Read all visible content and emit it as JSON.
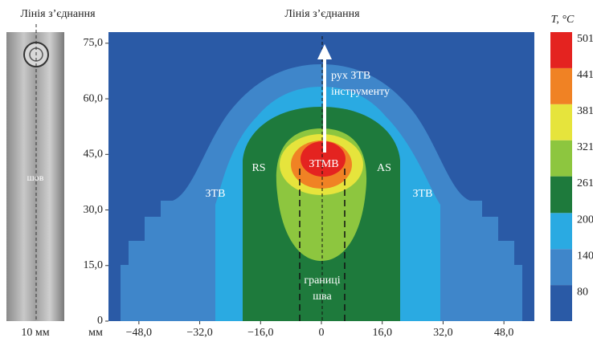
{
  "photo": {
    "title": "Лінія з’єднання",
    "label": "шов",
    "scale_label": "10 мм"
  },
  "chart_data": {
    "type": "contour",
    "title": "Лінія з’єднання",
    "x_unit": "мм",
    "xlim": [
      -56,
      56
    ],
    "xticks": [
      {
        "value": -48,
        "label": "−48,0"
      },
      {
        "value": -32,
        "label": "−32,0"
      },
      {
        "value": -16,
        "label": "−16,0"
      },
      0,
      {
        "value": 16,
        "label": "16,0"
      },
      {
        "value": 32,
        "label": "32,0"
      },
      {
        "value": 48,
        "label": "48,0"
      }
    ],
    "ylim": [
      0,
      78
    ],
    "yticks": [
      0,
      {
        "value": 15,
        "label": "15,0"
      },
      {
        "value": 30,
        "label": "30,0"
      },
      {
        "value": 45,
        "label": "45,0"
      },
      {
        "value": 60,
        "label": "60,0"
      },
      {
        "value": 75,
        "label": "75,0"
      }
    ],
    "colorbar_title": "T, °C",
    "clim": [
      20,
      501
    ],
    "levels": [
      80,
      140,
      200,
      261,
      321,
      381,
      441,
      501
    ],
    "colors": [
      "#2a5aa6",
      "#3f86ca",
      "#2aaae2",
      "#1e7a3c",
      "#8dc63f",
      "#e6e43c",
      "#f08224",
      "#e42320"
    ],
    "annotations": {
      "motion": [
        "рух ЗТВ",
        "інструменту"
      ],
      "nugget": "ЗТМВ",
      "retreating": "RS",
      "advancing": "AS",
      "haz_left": "ЗТВ",
      "haz_right": "ЗТВ",
      "boundary": [
        "границі",
        "шва"
      ]
    }
  }
}
